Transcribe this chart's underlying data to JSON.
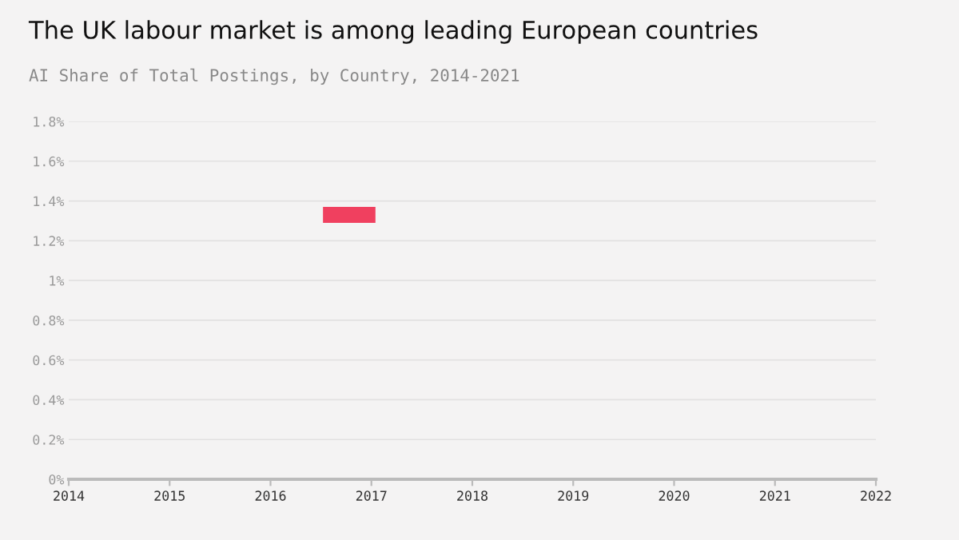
{
  "chart_data": {
    "type": "bar",
    "title": "The UK labour market is among leading European countries",
    "subtitle": "AI Share of Total Postings, by Country, 2014-2021",
    "x": [
      2016.78
    ],
    "base": [
      1.29
    ],
    "values": [
      0.08
    ],
    "color": "#f0405f",
    "xlim": [
      2014,
      2022
    ],
    "xticks": [
      2014,
      2015,
      2016,
      2017,
      2018,
      2019,
      2020,
      2021,
      2022
    ],
    "ylim": [
      0,
      1.8
    ],
    "yticks": [
      {
        "value": 0,
        "label": "0%"
      },
      {
        "value": 0.2,
        "label": "0.2%"
      },
      {
        "value": 0.4,
        "label": "0.4%"
      },
      {
        "value": 0.6,
        "label": "0.6%"
      },
      {
        "value": 0.8,
        "label": "0.8%"
      },
      {
        "value": 1,
        "label": "1%"
      },
      {
        "value": 1.2,
        "label": "1.2%"
      },
      {
        "value": 1.4,
        "label": "1.4%"
      },
      {
        "value": 1.6,
        "label": "1.6%"
      },
      {
        "value": 1.8,
        "label": "1.8%"
      }
    ],
    "grid": "y"
  }
}
